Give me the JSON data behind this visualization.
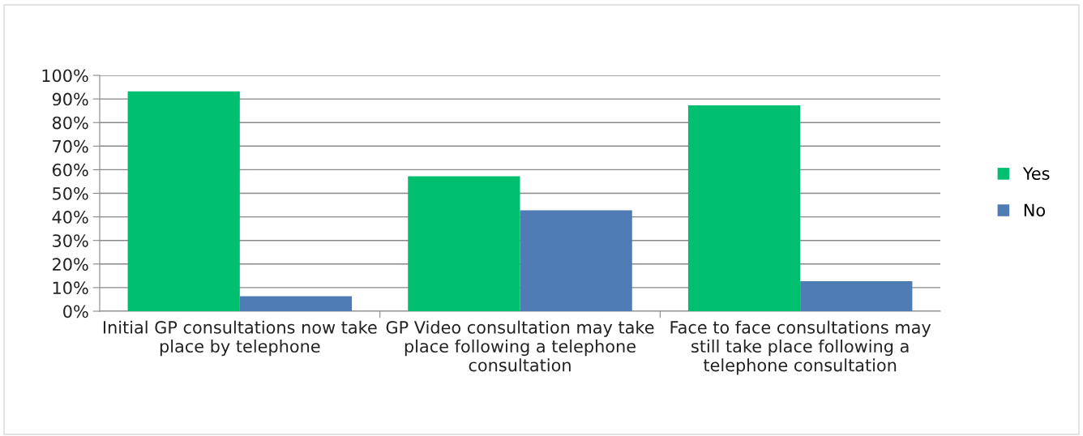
{
  "chart_data": {
    "type": "bar",
    "categories": [
      "Initial GP consultations now take place by telephone",
      "GP Video consultation may take place following a telephone consultation",
      "Face to face consultations may still take place following a telephone consultation"
    ],
    "series": [
      {
        "name": "Yes",
        "color": "#00bf6f",
        "values": [
          93.2,
          57.2,
          87.3
        ]
      },
      {
        "name": "No",
        "color": "#4f7cb5",
        "values": [
          6.4,
          42.8,
          12.7
        ]
      }
    ],
    "ylim": [
      0,
      100
    ],
    "yticks": [
      {
        "value": 0,
        "label": "0%"
      },
      {
        "value": 10,
        "label": "10%"
      },
      {
        "value": 20,
        "label": "20%"
      },
      {
        "value": 30,
        "label": "30%"
      },
      {
        "value": 40,
        "label": "40%"
      },
      {
        "value": 50,
        "label": "50%"
      },
      {
        "value": 60,
        "label": "60%"
      },
      {
        "value": 70,
        "label": "70%"
      },
      {
        "value": 80,
        "label": "80%"
      },
      {
        "value": 90,
        "label": "90%"
      },
      {
        "value": 100,
        "label": "100%"
      }
    ],
    "grid": "y",
    "legend": "right"
  }
}
